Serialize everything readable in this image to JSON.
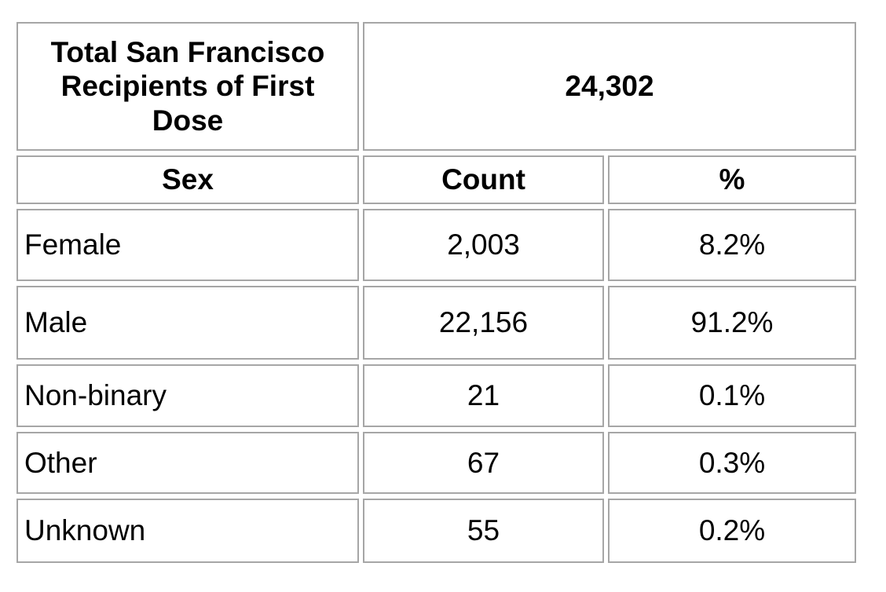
{
  "header": {
    "title": "Total San Francisco Recipients of First Dose",
    "total": "24,302"
  },
  "columns": {
    "sex": "Sex",
    "count": "Count",
    "pct": "%"
  },
  "rows": [
    {
      "sex": "Female",
      "count": "2,003",
      "pct": "8.2%"
    },
    {
      "sex": "Male",
      "count": "22,156",
      "pct": "91.2%"
    },
    {
      "sex": "Non-binary",
      "count": "21",
      "pct": "0.1%"
    },
    {
      "sex": "Other",
      "count": "67",
      "pct": "0.3%"
    },
    {
      "sex": "Unknown",
      "count": "55",
      "pct": "0.2%"
    }
  ],
  "colors": {
    "header_background": "#cfe2f3",
    "cell_border": "#a6a6a6",
    "text": "#000000",
    "page_background": "#ffffff"
  },
  "chart_data": {
    "type": "table",
    "title": "Total San Francisco Recipients of First Dose",
    "total": 24302,
    "columns": [
      "Sex",
      "Count",
      "%"
    ],
    "rows": [
      [
        "Female",
        2003,
        "8.2%"
      ],
      [
        "Male",
        22156,
        "91.2%"
      ],
      [
        "Non-binary",
        21,
        "0.1%"
      ],
      [
        "Other",
        67,
        "0.3%"
      ],
      [
        "Unknown",
        55,
        "0.2%"
      ]
    ]
  }
}
